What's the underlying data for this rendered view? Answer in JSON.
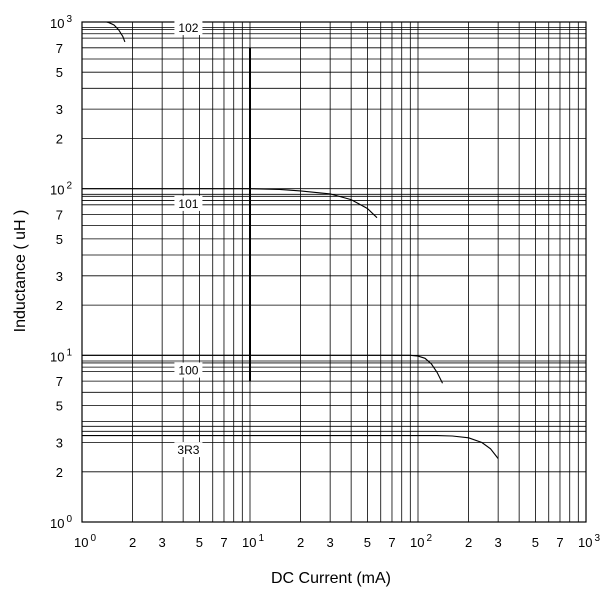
{
  "chart_data": {
    "type": "line",
    "xscale": "log",
    "yscale": "log",
    "xlim": [
      1,
      1000
    ],
    "ylim": [
      1,
      1000
    ],
    "grid": true,
    "legend": "none",
    "xlabel": "DC Current (mA)",
    "ylabel": "Inductance ( uH )",
    "x_ticks": [
      {
        "value": 1,
        "base": "10",
        "exp": "0"
      },
      {
        "value": 2,
        "base": "2",
        "exp": ""
      },
      {
        "value": 3,
        "base": "3",
        "exp": ""
      },
      {
        "value": 5,
        "base": "5",
        "exp": ""
      },
      {
        "value": 7,
        "base": "7",
        "exp": ""
      },
      {
        "value": 10,
        "base": "10",
        "exp": "1"
      },
      {
        "value": 20,
        "base": "2",
        "exp": ""
      },
      {
        "value": 30,
        "base": "3",
        "exp": ""
      },
      {
        "value": 50,
        "base": "5",
        "exp": ""
      },
      {
        "value": 70,
        "base": "7",
        "exp": ""
      },
      {
        "value": 100,
        "base": "10",
        "exp": "2"
      },
      {
        "value": 200,
        "base": "2",
        "exp": ""
      },
      {
        "value": 300,
        "base": "3",
        "exp": ""
      },
      {
        "value": 500,
        "base": "5",
        "exp": ""
      },
      {
        "value": 700,
        "base": "7",
        "exp": ""
      },
      {
        "value": 1000,
        "base": "10",
        "exp": "3"
      }
    ],
    "y_ticks": [
      {
        "value": 1,
        "base": "10",
        "exp": "0"
      },
      {
        "value": 2,
        "base": "2",
        "exp": ""
      },
      {
        "value": 3,
        "base": "3",
        "exp": ""
      },
      {
        "value": 5,
        "base": "5",
        "exp": ""
      },
      {
        "value": 7,
        "base": "7",
        "exp": ""
      },
      {
        "value": 10,
        "base": "10",
        "exp": "1"
      },
      {
        "value": 20,
        "base": "2",
        "exp": ""
      },
      {
        "value": 30,
        "base": "3",
        "exp": ""
      },
      {
        "value": 50,
        "base": "5",
        "exp": ""
      },
      {
        "value": 70,
        "base": "7",
        "exp": ""
      },
      {
        "value": 100,
        "base": "10",
        "exp": "2"
      },
      {
        "value": 200,
        "base": "2",
        "exp": ""
      },
      {
        "value": 300,
        "base": "3",
        "exp": ""
      },
      {
        "value": 500,
        "base": "5",
        "exp": ""
      },
      {
        "value": 700,
        "base": "7",
        "exp": ""
      },
      {
        "value": 1000,
        "base": "10",
        "exp": "3"
      }
    ],
    "series": [
      {
        "name": "102",
        "label_at": [
          4.3,
          920
        ],
        "points": [
          [
            1,
            1000
          ],
          [
            1.4,
            1000
          ],
          [
            1.45,
            990
          ],
          [
            1.55,
            960
          ],
          [
            1.65,
            900
          ],
          [
            1.75,
            820
          ],
          [
            1.8,
            760
          ]
        ]
      },
      {
        "name": "101",
        "label_at": [
          4.3,
          81
        ],
        "points": [
          [
            1,
            100
          ],
          [
            10,
            100
          ],
          [
            15,
            99
          ],
          [
            20,
            97
          ],
          [
            30,
            93
          ],
          [
            40,
            86
          ],
          [
            50,
            76
          ],
          [
            57,
            67
          ]
        ]
      },
      {
        "name": "100",
        "label_at": [
          4.3,
          8.1
        ],
        "points": [
          [
            1,
            10
          ],
          [
            90,
            10
          ],
          [
            100,
            9.9
          ],
          [
            110,
            9.6
          ],
          [
            120,
            8.9
          ],
          [
            130,
            7.9
          ],
          [
            140,
            6.8
          ]
        ]
      },
      {
        "name": "3R3",
        "label_at": [
          4.3,
          2.7
        ],
        "points": [
          [
            1,
            3.3
          ],
          [
            130,
            3.3
          ],
          [
            160,
            3.28
          ],
          [
            200,
            3.2
          ],
          [
            240,
            3.0
          ],
          [
            270,
            2.75
          ],
          [
            300,
            2.4
          ]
        ]
      }
    ],
    "guide_lines": [
      3.5,
      3.75,
      8.5,
      9.25,
      85,
      92.5,
      850,
      925
    ],
    "marker_line": {
      "x": 10,
      "y_range": [
        7,
        700
      ]
    }
  }
}
